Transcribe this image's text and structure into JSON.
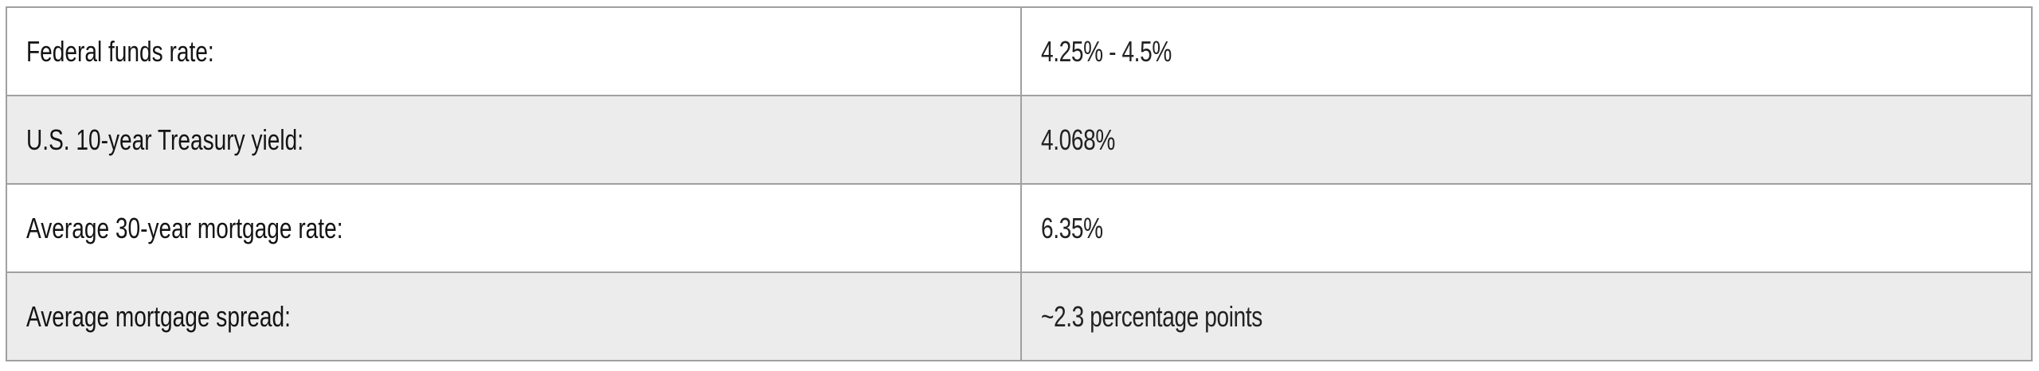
{
  "table": {
    "rows": [
      {
        "label": "Federal funds rate:",
        "value": "4.25% - 4.5%"
      },
      {
        "label": "U.S. 10-year Treasury yield:",
        "value": "4.068%"
      },
      {
        "label": "Average 30-year mortgage rate:",
        "value": "6.35%"
      },
      {
        "label": "Average mortgage spread:",
        "value": "~2.3 percentage points"
      }
    ]
  }
}
